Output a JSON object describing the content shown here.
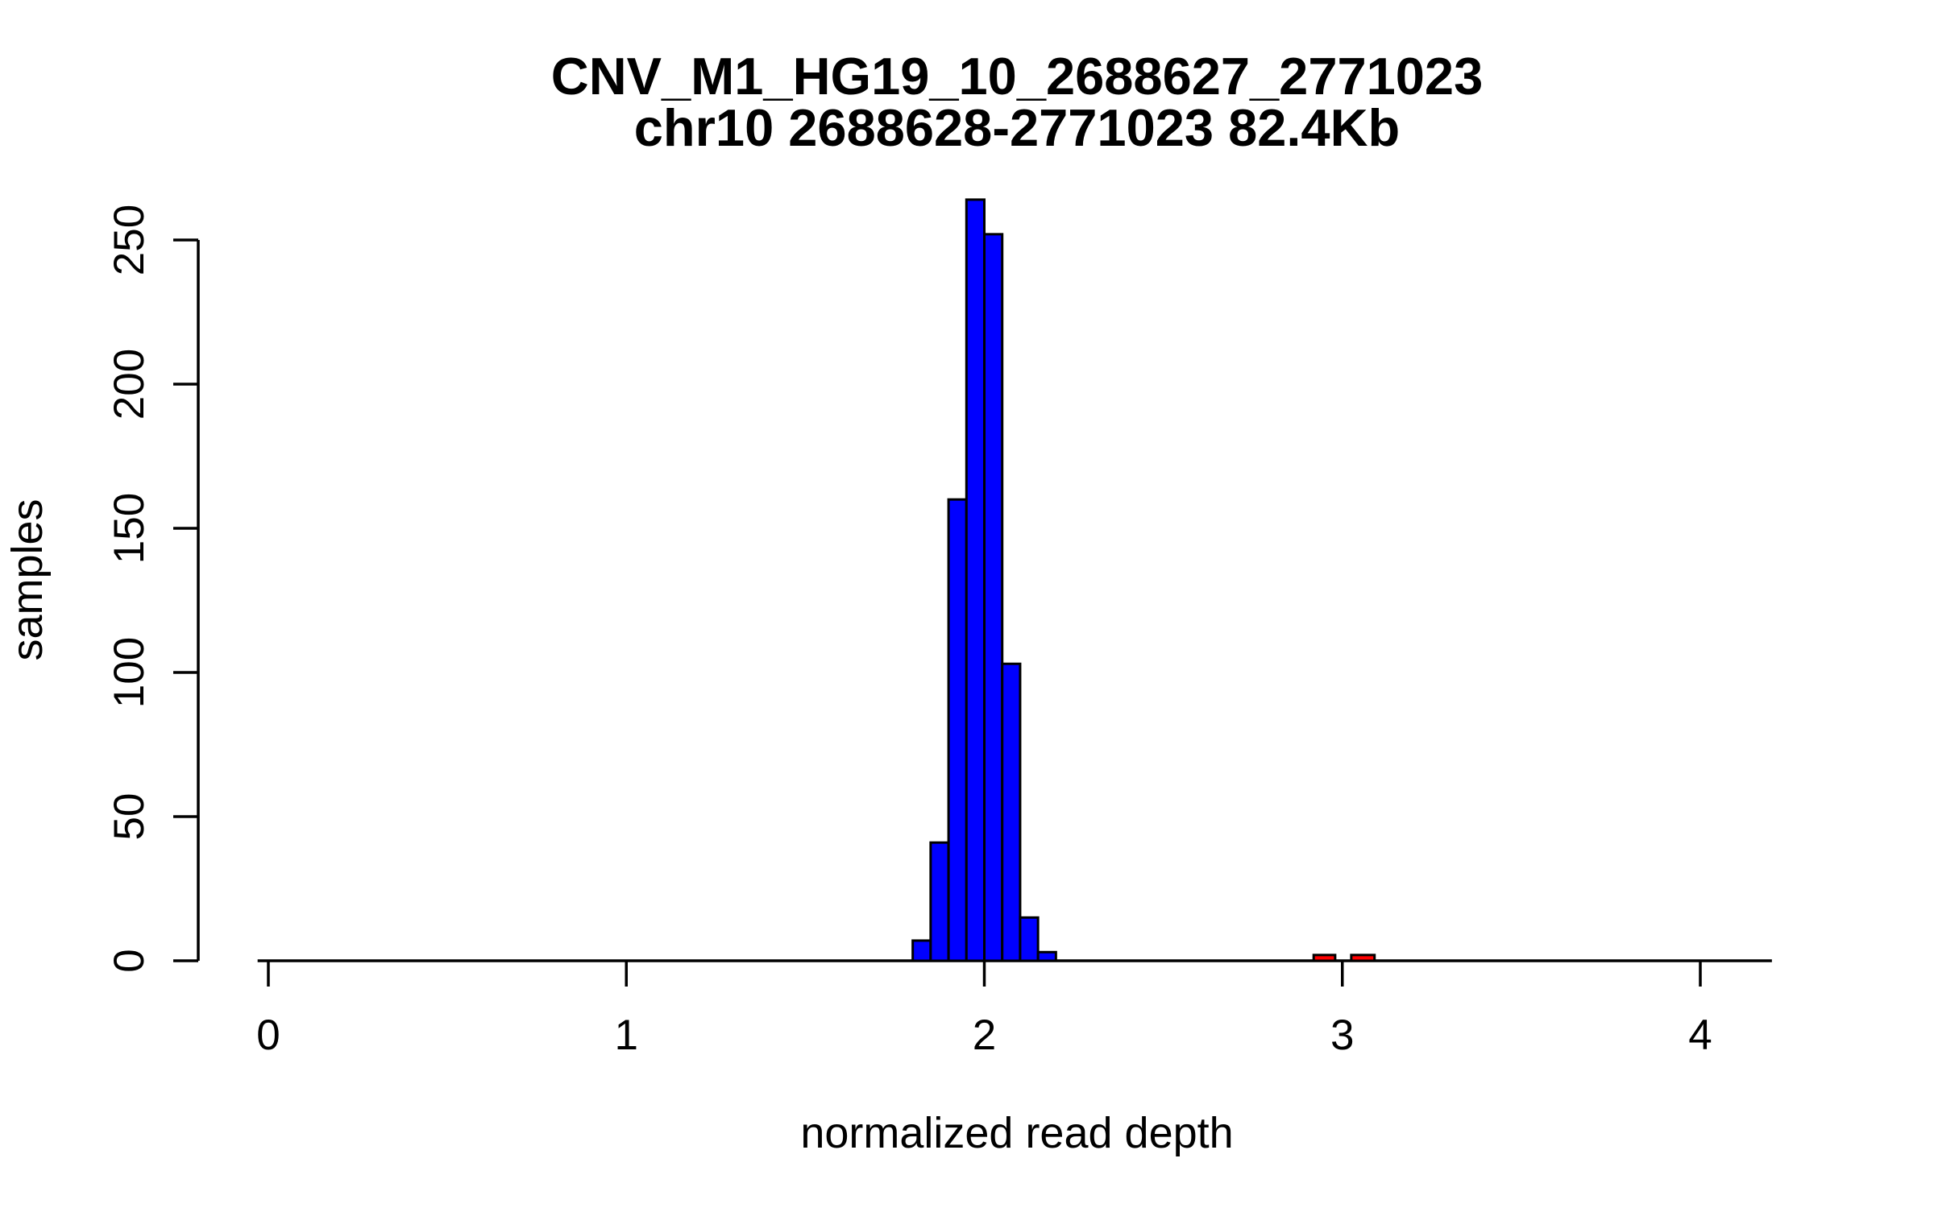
{
  "chart_data": {
    "type": "bar",
    "subtype": "histogram",
    "title_line1": "CNV_M1_HG19_10_2688627_2771023",
    "title_line2": "chr10 2688628-2771023 82.4Kb",
    "xlabel": "normalized read depth",
    "ylabel": "samples",
    "x_ticks": [
      0,
      1,
      2,
      3,
      4
    ],
    "y_ticks": [
      0,
      50,
      100,
      150,
      200,
      250
    ],
    "xlim": [
      -0.03,
      4.2
    ],
    "ylim": [
      0,
      264
    ],
    "grid": false,
    "legend": null,
    "bin_width": 0.05,
    "colors": {
      "main_fill": "#0000FF",
      "outlier_fill": "#FF0000",
      "axis": "#000000",
      "background": "#FFFFFF"
    },
    "series": [
      {
        "name": "blue",
        "color": "#0000FF",
        "bins": [
          {
            "x_start": 1.8,
            "x_end": 1.85,
            "count": 7
          },
          {
            "x_start": 1.85,
            "x_end": 1.9,
            "count": 41
          },
          {
            "x_start": 1.9,
            "x_end": 1.95,
            "count": 160
          },
          {
            "x_start": 1.95,
            "x_end": 2.0,
            "count": 264
          },
          {
            "x_start": 2.0,
            "x_end": 2.05,
            "count": 252
          },
          {
            "x_start": 2.05,
            "x_end": 2.1,
            "count": 103
          },
          {
            "x_start": 2.1,
            "x_end": 2.15,
            "count": 15
          },
          {
            "x_start": 2.15,
            "x_end": 2.2,
            "count": 3
          }
        ]
      },
      {
        "name": "red",
        "color": "#FF0000",
        "bins": [
          {
            "x_start": 2.92,
            "x_end": 2.98,
            "count": 2
          },
          {
            "x_start": 3.025,
            "x_end": 3.09,
            "count": 2
          }
        ]
      }
    ]
  }
}
